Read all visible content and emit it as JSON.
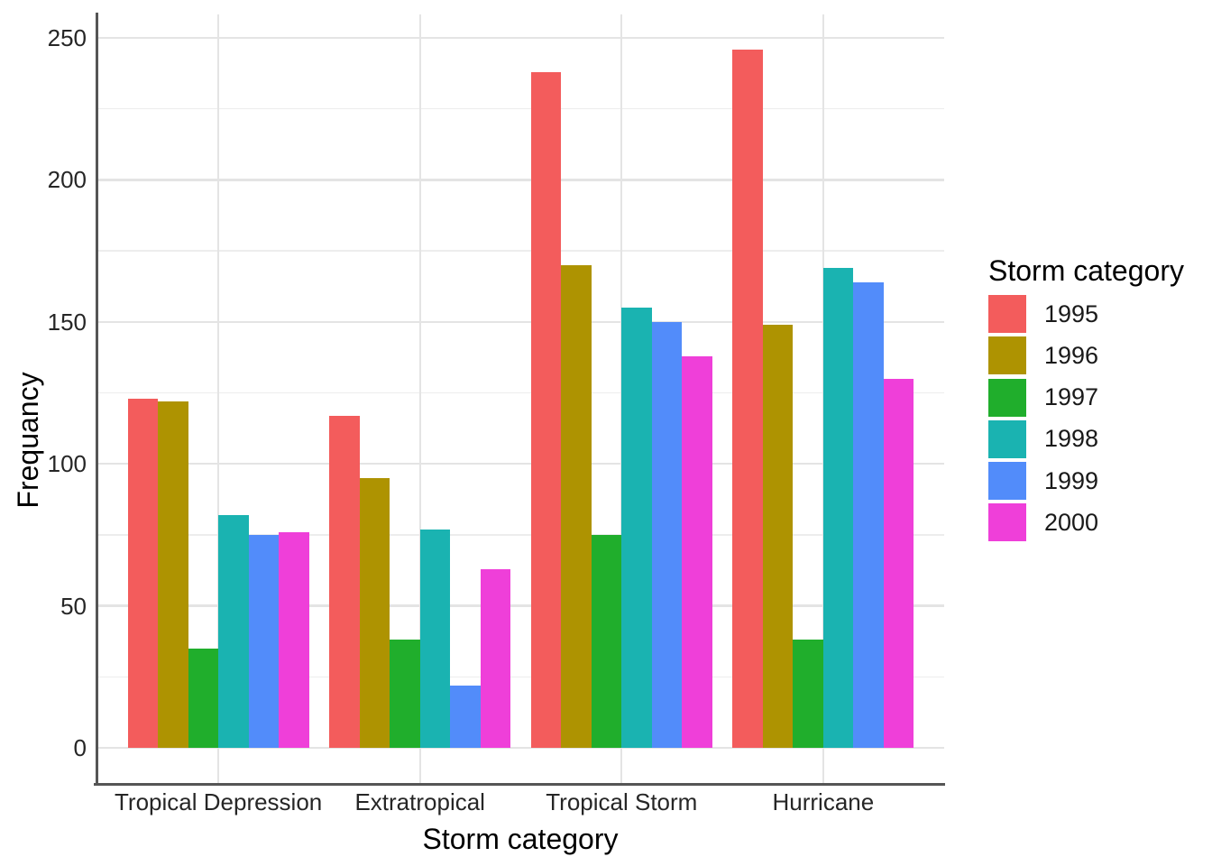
{
  "chart_data": {
    "type": "bar",
    "title": "",
    "xlabel": "Storm category",
    "ylabel": "Frequancy",
    "legend_title": "Storm category",
    "legend_position": "right",
    "grid": true,
    "categories": [
      "Tropical Depression",
      "Extratropical",
      "Tropical Storm",
      "Hurricane"
    ],
    "series": [
      {
        "name": "1995",
        "color": "#f35c5c",
        "values": [
          123,
          117,
          238,
          246
        ]
      },
      {
        "name": "1996",
        "color": "#ae9301",
        "values": [
          122,
          95,
          170,
          149
        ]
      },
      {
        "name": "1997",
        "color": "#20ae2c",
        "values": [
          35,
          38,
          75,
          38
        ]
      },
      {
        "name": "1998",
        "color": "#1ab3b1",
        "values": [
          82,
          77,
          155,
          169
        ]
      },
      {
        "name": "1999",
        "color": "#528cfa",
        "values": [
          75,
          22,
          150,
          164
        ]
      },
      {
        "name": "2000",
        "color": "#ef3fd9",
        "values": [
          76,
          63,
          138,
          130
        ]
      }
    ],
    "ylim": [
      0,
      258
    ],
    "yticks": [
      0,
      50,
      100,
      150,
      200,
      250
    ],
    "yticks_minor": [
      25,
      75,
      125,
      175,
      225
    ],
    "axis_line_color": "#555555",
    "gridline_color": "#e4e4e4"
  }
}
